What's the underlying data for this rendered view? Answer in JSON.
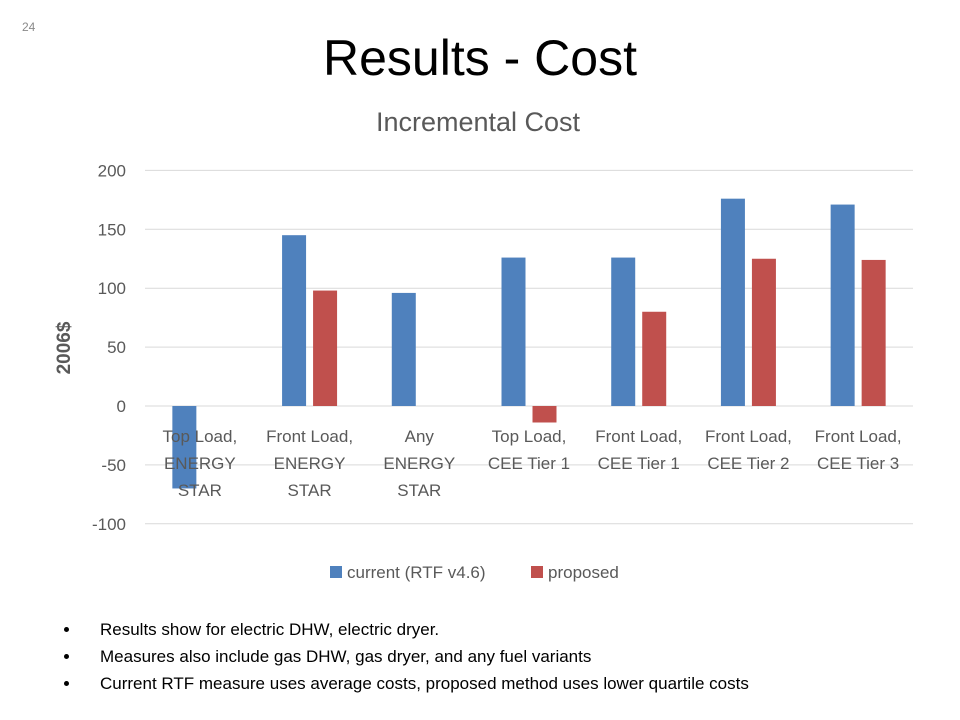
{
  "slide": {
    "number": "24",
    "title": "Results - Cost"
  },
  "chart_data": {
    "type": "bar",
    "title": "Incremental Cost",
    "ylabel": "2006$",
    "xlabel": "",
    "ylim": [
      -100,
      200
    ],
    "yticks": [
      200,
      150,
      100,
      50,
      0,
      -50,
      -100
    ],
    "grid": true,
    "legend_position": "bottom",
    "categories": [
      [
        "Top Load,",
        "ENERGY",
        "STAR"
      ],
      [
        "Front Load,",
        "ENERGY",
        "STAR"
      ],
      [
        "Any",
        "ENERGY",
        "STAR"
      ],
      [
        "Top Load,",
        "CEE Tier 1"
      ],
      [
        "Front Load,",
        "CEE Tier 1"
      ],
      [
        "Front Load,",
        "CEE Tier 2"
      ],
      [
        "Front Load,",
        "CEE Tier 3"
      ]
    ],
    "series": [
      {
        "name": "current (RTF v4.6)",
        "color": "#4f81bd",
        "values": [
          -70,
          145,
          96,
          126,
          126,
          176,
          171
        ]
      },
      {
        "name": "proposed",
        "color": "#c0504d",
        "values": [
          null,
          98,
          null,
          -14,
          80,
          125,
          124
        ]
      }
    ]
  },
  "bullets": [
    "Results show for electric DHW, electric dryer.",
    "Measures also include gas DHW, gas dryer, and any fuel variants",
    "Current RTF measure uses average costs, proposed method uses lower quartile costs"
  ]
}
